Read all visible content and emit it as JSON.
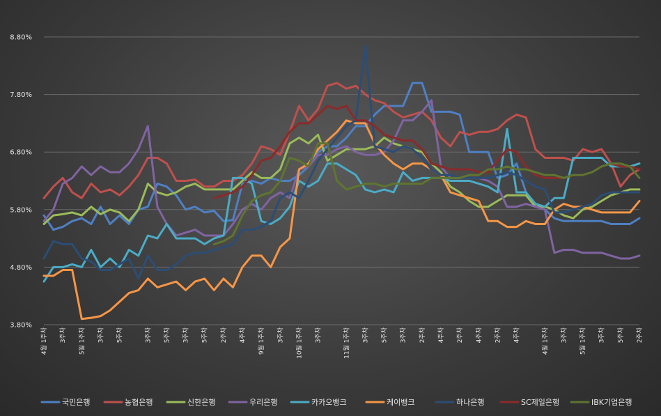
{
  "chart_data": {
    "type": "line",
    "title": "",
    "xlabel": "",
    "ylabel": "",
    "ylim": [
      3.8,
      8.8
    ],
    "yticks": [
      "3.80%",
      "4.80%",
      "5.80%",
      "6.80%",
      "7.80%",
      "8.80%"
    ],
    "grid": true,
    "legend_position": "bottom",
    "x_tick_labels": [
      "4월 1주차",
      "3주차",
      "5월 1주차",
      "3주차",
      "5주차",
      "3주차",
      "5주차",
      "3주차",
      "5주차",
      "2주차",
      "4주차",
      "9월 1주차",
      "3주차",
      "10월 1주차",
      "3주차",
      "11월 1주차",
      "3주차",
      "5주차",
      "3주차",
      "2주차",
      "4주차",
      "2주차",
      "4주차",
      "2주차",
      "4주차",
      "4월 1주차",
      "3주차",
      "5월 1주차",
      "3주차",
      "5주차",
      "2주차"
    ],
    "series": [
      {
        "name": "국민은행",
        "color": "#4e80c4",
        "values": [
          5.7,
          5.45,
          5.5,
          5.6,
          5.65,
          5.55,
          5.85,
          5.55,
          5.7,
          5.55,
          5.8,
          5.85,
          6.25,
          6.2,
          6.05,
          5.8,
          5.85,
          5.75,
          5.78,
          5.6,
          5.62,
          6.25,
          6.3,
          6.25,
          6.35,
          6.3,
          6.3,
          6.4,
          6.55,
          6.8,
          6.9,
          6.9,
          7.05,
          7.25,
          7.25,
          7.45,
          7.6,
          7.6,
          7.6,
          8.0,
          8.0,
          7.5,
          7.5,
          7.5,
          7.45,
          6.8,
          6.8,
          6.8,
          6.35,
          6.4,
          6.6,
          6.1,
          5.85,
          5.8,
          5.65,
          5.6,
          5.6,
          5.6,
          5.6,
          5.6,
          5.55,
          5.55,
          5.55,
          5.65
        ]
      },
      {
        "name": "농협은행",
        "color": "#c0504d",
        "values": [
          6.0,
          6.2,
          6.35,
          6.1,
          6.0,
          6.25,
          6.1,
          6.15,
          6.05,
          6.2,
          6.4,
          6.7,
          6.7,
          6.6,
          6.3,
          6.3,
          6.32,
          6.2,
          6.2,
          6.3,
          6.3,
          6.4,
          6.6,
          6.9,
          6.85,
          6.75,
          7.15,
          7.6,
          7.35,
          7.55,
          7.95,
          8.0,
          7.9,
          7.95,
          7.8,
          7.7,
          7.65,
          7.5,
          7.4,
          7.45,
          7.5,
          7.35,
          7.05,
          6.9,
          7.15,
          7.1,
          7.15,
          7.15,
          7.2,
          7.35,
          7.45,
          7.4,
          6.85,
          6.7,
          6.7,
          6.7,
          6.65,
          6.85,
          6.8,
          6.85,
          6.6,
          6.2,
          6.4,
          6.5
        ]
      },
      {
        "name": "신한은행",
        "color": "#9bbb59",
        "values": [
          5.55,
          5.7,
          5.72,
          5.75,
          5.7,
          5.85,
          5.72,
          5.8,
          5.75,
          5.6,
          5.8,
          6.25,
          6.1,
          6.05,
          6.1,
          6.2,
          6.25,
          6.15,
          6.15,
          6.15,
          6.15,
          6.3,
          6.45,
          6.35,
          6.35,
          6.5,
          6.95,
          7.05,
          6.95,
          7.1,
          6.65,
          6.75,
          6.85,
          6.85,
          6.85,
          6.9,
          7.05,
          6.95,
          6.9,
          6.85,
          6.8,
          6.6,
          6.45,
          6.2,
          6.1,
          5.95,
          5.85,
          5.85,
          5.95,
          6.05,
          6.05,
          6.05,
          5.85,
          5.85,
          5.8,
          5.7,
          5.65,
          5.8,
          5.85,
          5.95,
          6.05,
          6.1,
          6.15,
          6.15
        ]
      },
      {
        "name": "우리은행",
        "color": "#8064a2",
        "values": [
          5.6,
          5.8,
          6.25,
          6.35,
          6.55,
          6.4,
          6.55,
          6.45,
          6.45,
          6.6,
          6.85,
          7.25,
          5.85,
          5.55,
          5.35,
          5.4,
          5.45,
          5.35,
          5.35,
          5.35,
          5.55,
          5.8,
          5.9,
          5.8,
          6.0,
          6.1,
          6.0,
          6.5,
          6.55,
          6.75,
          6.75,
          6.85,
          6.9,
          6.8,
          6.75,
          6.75,
          6.8,
          7.0,
          7.35,
          7.35,
          7.5,
          7.7,
          6.55,
          6.35,
          6.35,
          6.35,
          6.35,
          6.3,
          6.2,
          5.85,
          5.85,
          5.9,
          5.85,
          5.8,
          5.05,
          5.1,
          5.1,
          5.05,
          5.05,
          5.05,
          5.0,
          4.95,
          4.95,
          5.0
        ]
      },
      {
        "name": "카카오뱅크",
        "color": "#4bacc6",
        "values": [
          4.55,
          4.8,
          4.8,
          4.85,
          4.8,
          5.1,
          4.8,
          4.95,
          4.8,
          5.1,
          5.0,
          5.35,
          5.3,
          5.55,
          5.3,
          5.3,
          5.3,
          5.2,
          5.3,
          5.35,
          6.35,
          6.35,
          6.25,
          5.6,
          5.55,
          5.65,
          5.85,
          6.3,
          6.2,
          6.3,
          6.6,
          6.6,
          6.5,
          6.4,
          6.15,
          6.1,
          6.15,
          6.1,
          6.45,
          6.3,
          6.35,
          6.35,
          6.35,
          6.3,
          6.3,
          6.3,
          6.25,
          6.2,
          6.1,
          7.2,
          6.1,
          6.1,
          5.9,
          5.85,
          6.0,
          6.0,
          6.7,
          6.7,
          6.7,
          6.7,
          6.55,
          6.55,
          6.55,
          6.6
        ]
      },
      {
        "name": "케이뱅크",
        "color": "#f79646",
        "values": [
          4.65,
          4.65,
          4.75,
          4.75,
          3.9,
          3.92,
          3.95,
          4.05,
          4.2,
          4.35,
          4.4,
          4.6,
          4.45,
          4.5,
          4.55,
          4.4,
          4.55,
          4.6,
          4.4,
          4.6,
          4.45,
          4.8,
          5.0,
          5.0,
          4.8,
          5.15,
          5.3,
          6.5,
          6.6,
          6.85,
          7.0,
          7.15,
          7.35,
          7.3,
          7.3,
          6.95,
          6.75,
          6.6,
          6.5,
          6.6,
          6.6,
          6.5,
          6.4,
          6.1,
          6.05,
          6.0,
          5.95,
          5.6,
          5.6,
          5.5,
          5.5,
          5.6,
          5.55,
          5.55,
          5.8,
          5.9,
          5.85,
          5.85,
          5.8,
          5.75,
          5.75,
          5.75,
          5.75,
          5.95
        ]
      },
      {
        "name": "하나은행",
        "color": "#2c4d75",
        "values": [
          4.95,
          5.25,
          5.2,
          5.2,
          4.95,
          4.9,
          4.75,
          4.75,
          4.85,
          4.95,
          4.6,
          5.0,
          4.75,
          4.75,
          4.85,
          5.0,
          5.05,
          5.05,
          5.1,
          5.15,
          5.2,
          5.45,
          5.45,
          5.5,
          5.6,
          6.0,
          6.1,
          6.0,
          6.3,
          6.65,
          6.85,
          7.05,
          7.25,
          7.35,
          8.65,
          6.9,
          6.85,
          6.8,
          6.9,
          6.85,
          6.7,
          6.5,
          6.4,
          6.4,
          6.35,
          6.35,
          6.35,
          6.35,
          6.4,
          6.45,
          6.4,
          6.3,
          6.2,
          6.15,
          5.75,
          5.75,
          5.8,
          5.85,
          5.9,
          6.05,
          6.1,
          6.1,
          6.1,
          6.1
        ]
      },
      {
        "name": "SC제일은행",
        "color": "#8b2a2a",
        "values": [
          null,
          null,
          null,
          null,
          null,
          null,
          null,
          null,
          null,
          null,
          null,
          null,
          null,
          null,
          null,
          null,
          null,
          null,
          6.0,
          6.05,
          6.1,
          6.2,
          6.4,
          6.65,
          6.7,
          6.9,
          7.15,
          7.3,
          7.3,
          7.45,
          7.6,
          7.55,
          7.6,
          7.35,
          7.35,
          7.25,
          7.1,
          7.05,
          7.0,
          7.0,
          6.85,
          6.6,
          6.55,
          6.5,
          6.5,
          6.5,
          6.45,
          6.45,
          6.65,
          6.85,
          6.8,
          6.55,
          6.4,
          6.35,
          6.35,
          6.35,
          6.4,
          6.4,
          6.45,
          6.55,
          6.6,
          6.55,
          6.55,
          6.5
        ]
      },
      {
        "name": "IBK기업은행",
        "color": "#5f7530",
        "values": [
          null,
          null,
          null,
          null,
          null,
          null,
          null,
          null,
          null,
          null,
          null,
          null,
          null,
          null,
          null,
          null,
          null,
          null,
          5.2,
          5.25,
          5.35,
          5.7,
          5.95,
          6.05,
          6.1,
          6.3,
          6.7,
          6.65,
          6.55,
          6.95,
          6.95,
          6.3,
          6.15,
          6.2,
          6.25,
          6.25,
          6.2,
          6.25,
          6.25,
          6.25,
          6.25,
          6.35,
          6.35,
          6.35,
          6.35,
          6.4,
          6.4,
          6.5,
          6.5,
          6.55,
          6.5,
          6.5,
          6.45,
          6.4,
          6.4,
          6.35,
          6.4,
          6.4,
          6.45,
          6.55,
          6.6,
          6.6,
          6.55,
          6.35
        ]
      }
    ]
  }
}
